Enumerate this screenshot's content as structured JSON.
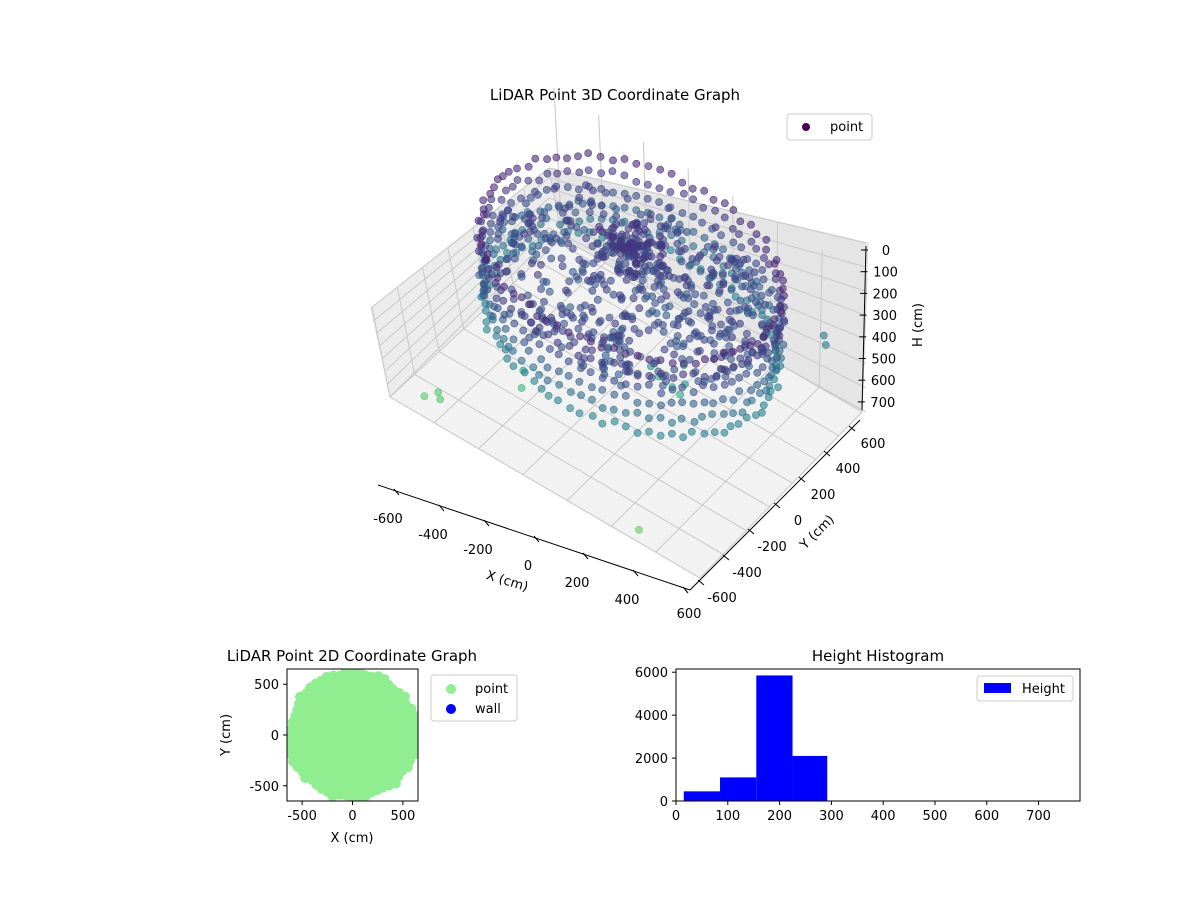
{
  "chart_data": [
    {
      "type": "scatter",
      "projection": "3d",
      "title": "LiDAR Point 3D Coordinate Graph",
      "xlabel": "X (cm)",
      "ylabel": "Y (cm)",
      "zlabel": "H (cm)",
      "xticks": [
        "-600",
        "-400",
        "-200",
        "0",
        "200",
        "400",
        "600"
      ],
      "yticks": [
        "-600",
        "-400",
        "-200",
        "0",
        "200",
        "400",
        "600"
      ],
      "zticks": [
        "0",
        "100",
        "200",
        "300",
        "400",
        "500",
        "600",
        "700"
      ],
      "xlim": [
        -700,
        700
      ],
      "ylim": [
        -700,
        700
      ],
      "zlim": [
        0,
        750
      ],
      "z_inverted": true,
      "grid": true,
      "legend": {
        "position": "top-right",
        "entries": [
          {
            "label": "point",
            "color": "#440154"
          }
        ]
      },
      "colormap": "viridis",
      "description_of_points": {
        "outer_ring_radius_cm": 600,
        "outer_ring_height_cm": [
          100,
          450
        ],
        "inner_layers_height_cm": [
          180,
          300
        ],
        "central_cluster_height_cm": [
          150,
          230
        ],
        "stray_points": [
          {
            "x": -560,
            "y": -560,
            "h": 720
          },
          {
            "x": -600,
            "y": -600,
            "h": 740
          },
          {
            "x": -540,
            "y": -580,
            "h": 730
          },
          {
            "x": -300,
            "y": -350,
            "h": 660
          },
          {
            "x": -320,
            "y": -300,
            "h": 620
          },
          {
            "x": 60,
            "y": 120,
            "h": 640
          },
          {
            "x": 150,
            "y": 160,
            "h": 560
          },
          {
            "x": 200,
            "y": 40,
            "h": 600
          },
          {
            "x": 170,
            "y": 30,
            "h": 580
          },
          {
            "x": 210,
            "y": 60,
            "h": 560
          },
          {
            "x": 90,
            "y": 0,
            "h": 520
          },
          {
            "x": 380,
            "y": -620,
            "h": 760
          },
          {
            "x": 560,
            "y": 560,
            "h": 400
          },
          {
            "x": 580,
            "y": 540,
            "h": 420
          }
        ]
      }
    },
    {
      "type": "scatter",
      "title": "LiDAR Point 2D Coordinate Graph",
      "xlabel": "X (cm)",
      "ylabel": "Y (cm)",
      "xticks": [
        "-500",
        "0",
        "500"
      ],
      "yticks": [
        "-500",
        "0",
        "500"
      ],
      "xlim": [
        -650,
        650
      ],
      "ylim": [
        -650,
        650
      ],
      "legend": {
        "position": "outside-right",
        "entries": [
          {
            "label": "point",
            "color": "#90ee90"
          },
          {
            "label": "wall",
            "color": "#0000ff"
          }
        ]
      },
      "point_cloud_radius_cm": 620
    },
    {
      "type": "bar",
      "title": "Height Histogram",
      "xticks": [
        "0",
        "100",
        "200",
        "300",
        "400",
        "500",
        "600",
        "700"
      ],
      "yticks": [
        "0",
        "2000",
        "4000",
        "6000"
      ],
      "xlim": [
        0,
        780
      ],
      "ylim": [
        0,
        6150
      ],
      "legend": {
        "position": "top-right",
        "entries": [
          {
            "label": "Height",
            "color": "#0000ff"
          }
        ]
      },
      "bins": [
        {
          "from": 15,
          "to": 85,
          "count": 450
        },
        {
          "from": 85,
          "to": 155,
          "count": 1100
        },
        {
          "from": 155,
          "to": 225,
          "count": 5850
        },
        {
          "from": 225,
          "to": 292,
          "count": 2100
        }
      ]
    }
  ]
}
